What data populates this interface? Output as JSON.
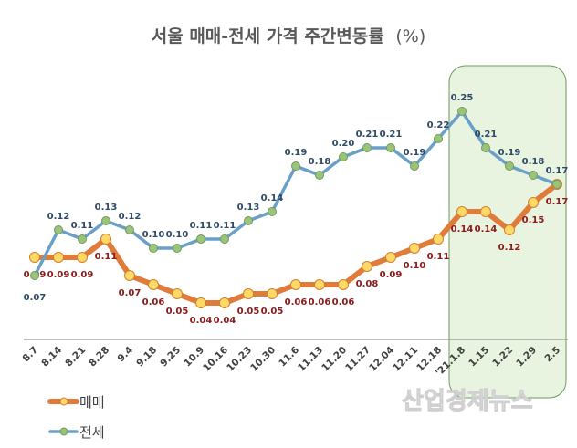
{
  "chart_data": {
    "type": "line",
    "title": "서울 매매-전세 가격 주간변동률",
    "title_unit": "(%)",
    "categories": [
      "8.7",
      "8.14",
      "8.21",
      "8.28",
      "9.4",
      "9.18",
      "9.25",
      "10.9",
      "10.16",
      "10.23",
      "10.30",
      "11.6",
      "11.13",
      "11.20",
      "11.27",
      "12.04",
      "12.11",
      "12.18",
      "'21.1.8",
      "1.15",
      "1.22",
      "1.29",
      "2.5"
    ],
    "series": [
      {
        "name": "매매",
        "color": "#E07B39",
        "marker_color": "#FFD966",
        "label_color": "#8B1A1A",
        "values": [
          0.09,
          0.09,
          0.09,
          0.11,
          0.07,
          0.06,
          0.05,
          0.04,
          0.04,
          0.05,
          0.05,
          0.06,
          0.06,
          0.06,
          0.08,
          0.09,
          0.1,
          0.11,
          0.14,
          0.14,
          0.12,
          0.15,
          0.17
        ]
      },
      {
        "name": "전세",
        "color": "#6A9FC8",
        "marker_color": "#9BC47A",
        "label_color": "#2E4A66",
        "values": [
          0.07,
          0.12,
          0.11,
          0.13,
          0.12,
          0.1,
          0.1,
          0.11,
          0.11,
          0.13,
          0.14,
          0.19,
          0.18,
          0.2,
          0.21,
          0.21,
          0.19,
          0.22,
          0.25,
          0.21,
          0.19,
          0.18,
          0.17
        ]
      }
    ],
    "highlight": {
      "from": "'21.1.8",
      "to": "2.5",
      "color": "#E8F3E0",
      "border": "#6E9A5A"
    },
    "legend_placement": "bottom-left",
    "grid": false,
    "watermark": "산업경제뉴스"
  }
}
